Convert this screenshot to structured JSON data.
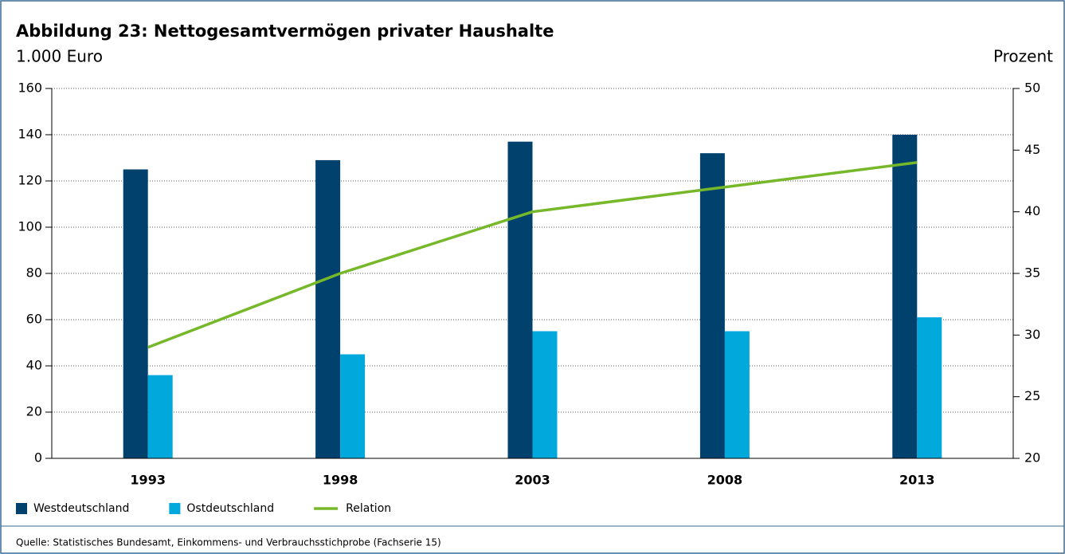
{
  "chart_data": {
    "type": "bar_line",
    "title": "Abbildung 23: Nettogesamtvermögen privater Haushalte",
    "y_label": "1.000 Euro",
    "y2_label": "Prozent",
    "source": "Quelle: Statistisches Bundesamt, Einkommens- und Verbrauchsstichprobe (Fachserie 15)",
    "categories": [
      "1993",
      "1998",
      "2003",
      "2008",
      "2013"
    ],
    "series": [
      {
        "name": "Westdeutschland",
        "type": "bar",
        "color": "#00416e",
        "values": [
          125,
          129,
          137,
          132,
          140
        ]
      },
      {
        "name": "Ostdeutschland",
        "type": "bar",
        "color": "#00a8dc",
        "values": [
          36,
          45,
          55,
          55,
          61
        ]
      },
      {
        "name": "Relation",
        "type": "line",
        "axis": "y2",
        "color": "#76b82a",
        "values": [
          29,
          35,
          40,
          42,
          44
        ]
      }
    ],
    "ylim": [
      0,
      160
    ],
    "yticks": [
      0,
      20,
      40,
      60,
      80,
      100,
      120,
      140,
      160
    ],
    "y2lim": [
      20,
      50
    ],
    "y2ticks": [
      20,
      25,
      30,
      35,
      40,
      45,
      50
    ],
    "grid": true,
    "legend": "bottom-left"
  }
}
